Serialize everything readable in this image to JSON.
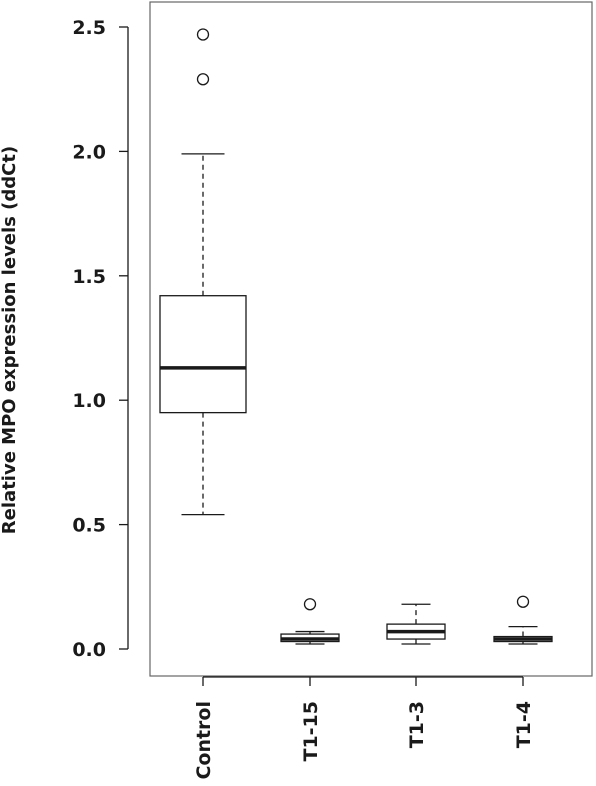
{
  "chart_data": {
    "type": "box",
    "title": "",
    "xlabel": "",
    "ylabel": "Relative MPO expression levels (ddCt)",
    "ylim": [
      0,
      2.5
    ],
    "y_ticks": [
      "0.0",
      "0.5",
      "1.0",
      "1.5",
      "2.0",
      "2.5"
    ],
    "categories": [
      "Control",
      "T1-15",
      "T1-3",
      "T1-4"
    ],
    "boxes": [
      {
        "name": "Control",
        "whisker_low": 0.54,
        "q1": 0.95,
        "median": 1.13,
        "q3": 1.42,
        "whisker_high": 1.99,
        "outliers": [
          2.29,
          2.47
        ]
      },
      {
        "name": "T1-15",
        "whisker_low": 0.02,
        "q1": 0.03,
        "median": 0.04,
        "q3": 0.06,
        "whisker_high": 0.07,
        "outliers": [
          0.18
        ]
      },
      {
        "name": "T1-3",
        "whisker_low": 0.02,
        "q1": 0.04,
        "median": 0.07,
        "q3": 0.1,
        "whisker_high": 0.18,
        "outliers": []
      },
      {
        "name": "T1-4",
        "whisker_low": 0.02,
        "q1": 0.03,
        "median": 0.04,
        "q3": 0.05,
        "whisker_high": 0.09,
        "outliers": [
          0.19
        ]
      }
    ],
    "grid": false,
    "colors": {
      "box_fill": "#ffffff",
      "stroke": "#1a1a1a",
      "frame": "#666666"
    }
  }
}
